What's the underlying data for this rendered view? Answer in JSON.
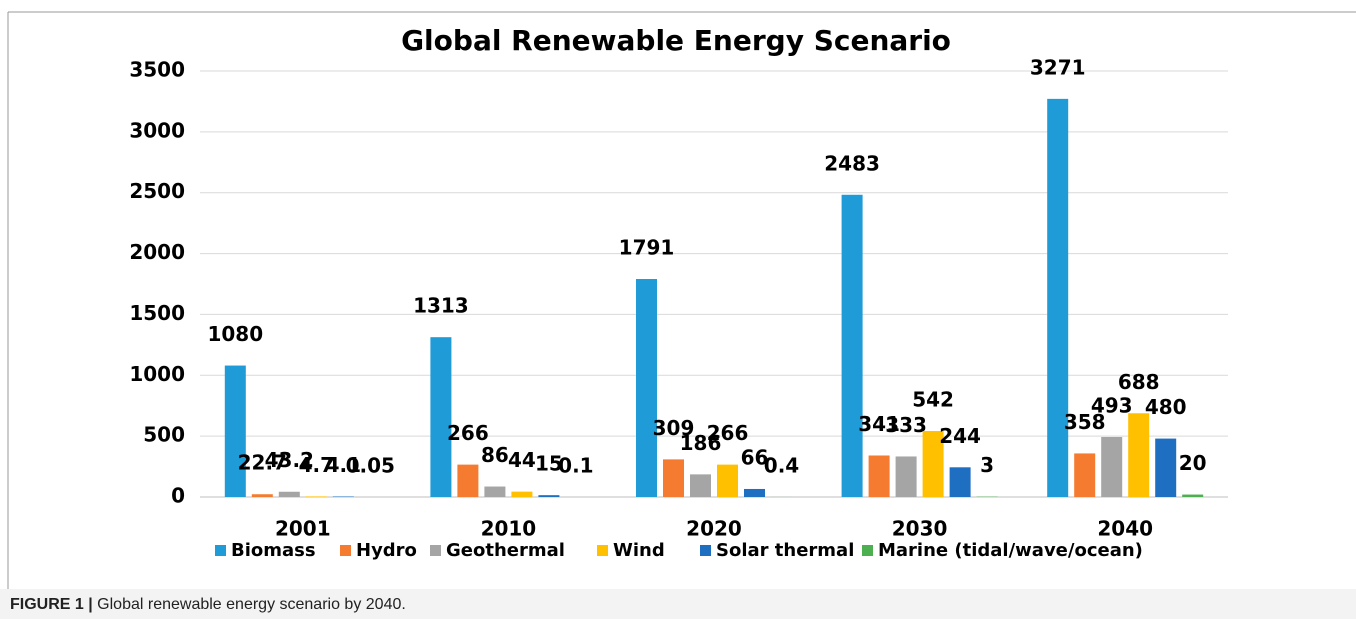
{
  "chart_data": {
    "type": "bar",
    "title": "Global Renewable Energy Scenario",
    "categories": [
      "2001",
      "2010",
      "2020",
      "2030",
      "2040"
    ],
    "series": [
      {
        "name": "Biomass",
        "color": "#1f9bd7",
        "values": [
          1080,
          1313,
          1791,
          2483,
          3271
        ]
      },
      {
        "name": "Hydro",
        "color": "#f47b2f",
        "values": [
          22.7,
          266,
          309,
          341,
          358
        ]
      },
      {
        "name": "Geothermal",
        "color": "#a5a5a5",
        "values": [
          43.2,
          86,
          186,
          333,
          493
        ]
      },
      {
        "name": "Wind",
        "color": "#ffc000",
        "values": [
          4.7,
          44,
          266,
          542,
          688
        ]
      },
      {
        "name": "Solar thermal",
        "color": "#1e6fc2",
        "values": [
          4.1,
          15,
          66,
          244,
          480
        ]
      },
      {
        "name": "Marine (tidal/wave/ocean)",
        "color": "#4caf50",
        "values": [
          0.05,
          0.1,
          0.4,
          3,
          20
        ]
      }
    ],
    "ylim": [
      0,
      3500
    ],
    "yticks": [
      0,
      500,
      1000,
      1500,
      2000,
      2500,
      3000,
      3500
    ],
    "grid": true
  },
  "caption": {
    "label": "FIGURE 1 |",
    "text": "Global renewable energy scenario by 2040."
  }
}
